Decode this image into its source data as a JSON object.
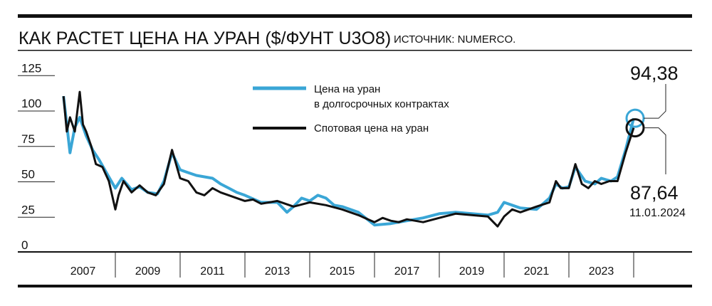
{
  "chart_data": {
    "type": "line",
    "title": "КАК РАСТЕТ ЦЕНА НА УРАН ($/ФУНТ U3O8)",
    "source": "ИСТОЧНИК: NUMERCO.",
    "xlabel": "",
    "ylabel": "",
    "ylim": [
      0,
      125
    ],
    "xlim": [
      2006,
      2026
    ],
    "y_ticks": [
      "125",
      "100",
      "75",
      "50",
      "25",
      "0"
    ],
    "x_ticks": [
      "2007",
      "2009",
      "2011",
      "2013",
      "2015",
      "2017",
      "2019",
      "2021",
      "2023"
    ],
    "legend_position": "top-center",
    "grid": false,
    "colors": {
      "long_term": "#3aa6d6",
      "spot": "#111111"
    },
    "series": [
      {
        "name": "Цена на уран в долгосрочных контрактах",
        "legend_line1": "Цена на уран",
        "legend_line2": "в долгосрочных контрактах",
        "x": [
          2006.4,
          2006.5,
          2006.6,
          2006.75,
          2006.9,
          2007.1,
          2007.3,
          2007.5,
          2007.75,
          2008.0,
          2008.2,
          2008.5,
          2008.75,
          2009.0,
          2009.3,
          2009.5,
          2009.75,
          2010.0,
          2010.25,
          2010.5,
          2010.75,
          2011.0,
          2011.25,
          2011.5,
          2011.75,
          2012.0,
          2012.5,
          2013.0,
          2013.3,
          2013.5,
          2013.75,
          2014.0,
          2014.25,
          2014.5,
          2014.75,
          2015.0,
          2015.5,
          2016.0,
          2016.5,
          2017.0,
          2017.5,
          2018.0,
          2018.5,
          2019.0,
          2019.5,
          2019.8,
          2020.0,
          2020.5,
          2021.0,
          2021.4,
          2021.6,
          2021.8,
          2022.0,
          2022.2,
          2022.5,
          2022.8,
          2023.0,
          2023.3,
          2023.5,
          2023.75,
          2024.0
        ],
        "values": [
          110,
          90,
          70,
          88,
          95,
          82,
          72,
          65,
          55,
          45,
          52,
          44,
          46,
          42,
          41,
          50,
          70,
          58,
          56,
          54,
          53,
          52,
          48,
          45,
          42,
          40,
          35,
          35,
          28,
          32,
          38,
          36,
          40,
          38,
          33,
          32,
          28,
          19,
          20,
          22,
          24,
          27,
          28,
          27,
          26,
          28,
          35,
          31,
          30,
          38,
          48,
          45,
          46,
          60,
          50,
          48,
          52,
          50,
          53,
          72,
          94.38
        ]
      },
      {
        "name": "Спотовая цена на уран",
        "x": [
          2006.4,
          2006.5,
          2006.6,
          2006.75,
          2006.9,
          2007.0,
          2007.1,
          2007.25,
          2007.4,
          2007.6,
          2007.8,
          2008.0,
          2008.1,
          2008.25,
          2008.5,
          2008.75,
          2009.0,
          2009.25,
          2009.5,
          2009.75,
          2010.0,
          2010.25,
          2010.5,
          2010.75,
          2011.0,
          2011.25,
          2011.5,
          2011.75,
          2012.0,
          2012.25,
          2012.5,
          2012.75,
          2013.0,
          2013.5,
          2014.0,
          2014.5,
          2015.0,
          2015.5,
          2016.0,
          2016.25,
          2016.5,
          2016.75,
          2017.0,
          2017.5,
          2018.0,
          2018.5,
          2019.0,
          2019.5,
          2019.8,
          2020.0,
          2020.25,
          2020.5,
          2021.0,
          2021.4,
          2021.6,
          2021.75,
          2022.0,
          2022.2,
          2022.4,
          2022.6,
          2022.8,
          2023.0,
          2023.25,
          2023.5,
          2023.75,
          2024.0
        ],
        "values": [
          110,
          85,
          95,
          85,
          113,
          90,
          85,
          75,
          62,
          60,
          50,
          30,
          40,
          50,
          42,
          47,
          42,
          40,
          48,
          72,
          52,
          50,
          42,
          40,
          45,
          42,
          40,
          38,
          36,
          37,
          34,
          35,
          36,
          32,
          35,
          33,
          30,
          26,
          21,
          24,
          22,
          21,
          23,
          21,
          24,
          27,
          26,
          25,
          18,
          25,
          30,
          28,
          32,
          35,
          50,
          45,
          45,
          62,
          48,
          45,
          50,
          48,
          50,
          50,
          70,
          87.64
        ]
      }
    ],
    "annotations": [
      {
        "value": "94,38",
        "series": "long_term"
      },
      {
        "value": "87,64",
        "series": "spot",
        "date": "11.01.2024"
      }
    ]
  }
}
